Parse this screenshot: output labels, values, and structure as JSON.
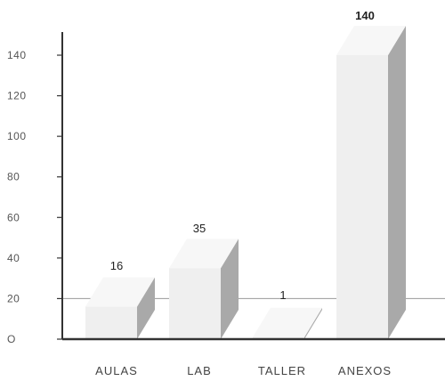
{
  "chart_data": {
    "type": "bar",
    "style": "3d",
    "categories": [
      "AULAS",
      "LAB",
      "TALLER",
      "ANEXOS"
    ],
    "values": [
      16,
      35,
      1,
      140
    ],
    "data_labels": [
      "16",
      "35",
      "1",
      "140"
    ],
    "title": "",
    "xlabel": "",
    "ylabel": "",
    "ylim": [
      0,
      150
    ],
    "yticks": [
      0,
      20,
      40,
      60,
      80,
      100,
      120,
      140
    ],
    "ytick_labels": [
      "O",
      "20",
      "40",
      "60",
      "80",
      "100",
      "120",
      "140"
    ],
    "grid": false,
    "reference_line": 20,
    "colors": {
      "bar_front": "#efefef",
      "bar_side": "#a9a9a9",
      "bar_top": "#f7f7f7",
      "axis": "#333333",
      "reference_line": "#9a9a9a"
    }
  }
}
